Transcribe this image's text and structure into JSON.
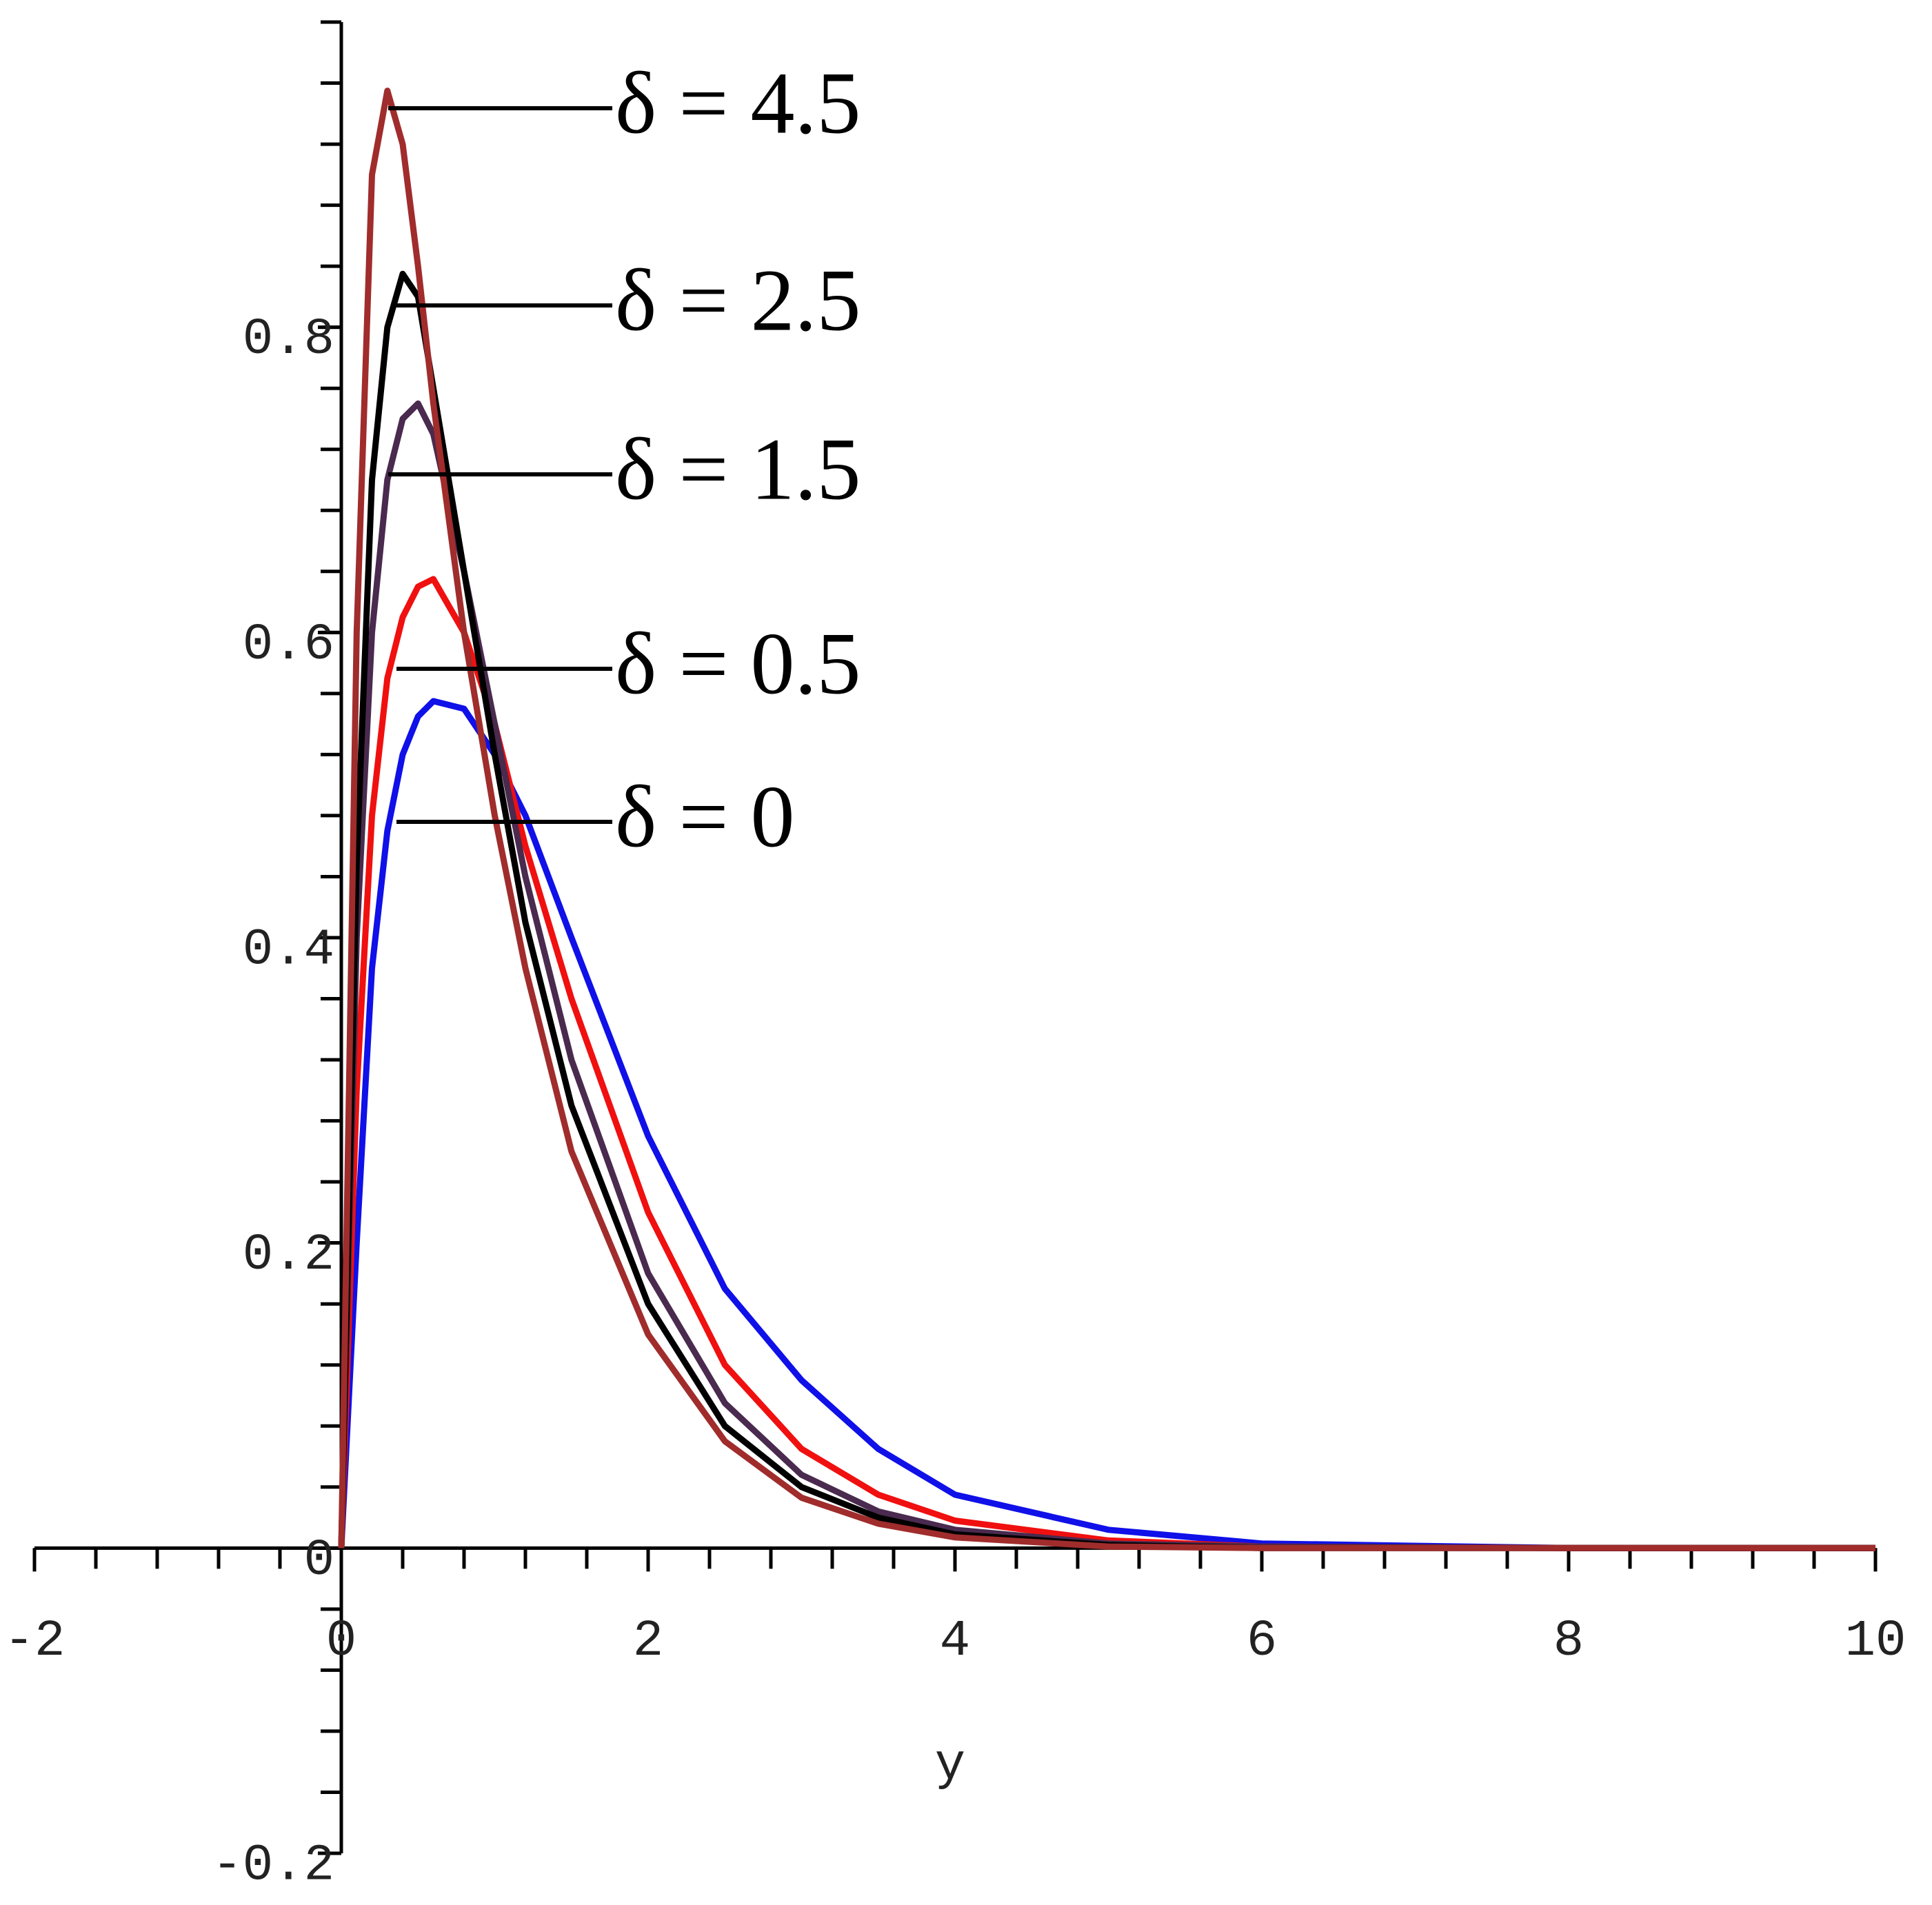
{
  "chart_data": {
    "type": "line",
    "x_label": "y",
    "x": [
      0,
      0.1,
      0.2,
      0.3,
      0.4,
      0.5,
      0.6,
      0.8,
      1,
      1.2,
      1.5,
      2,
      2.5,
      3,
      3.5,
      4,
      5,
      6,
      8,
      10
    ],
    "series": [
      {
        "name": "δ = 0",
        "color": "#1010e8",
        "values": [
          0,
          0.2,
          0.38,
          0.47,
          0.52,
          0.545,
          0.555,
          0.55,
          0.52,
          0.48,
          0.4,
          0.27,
          0.17,
          0.11,
          0.065,
          0.035,
          0.012,
          0.003,
          0,
          0
        ]
      },
      {
        "name": "δ = 0.5",
        "color": "#f01010",
        "values": [
          0,
          0.3,
          0.48,
          0.57,
          0.61,
          0.63,
          0.635,
          0.6,
          0.54,
          0.46,
          0.36,
          0.22,
          0.12,
          0.065,
          0.035,
          0.018,
          0.005,
          0.001,
          0,
          0
        ]
      },
      {
        "name": "δ = 1.5",
        "color": "#4a2a4e",
        "values": [
          0,
          0.4,
          0.6,
          0.7,
          0.74,
          0.75,
          0.73,
          0.64,
          0.54,
          0.44,
          0.32,
          0.18,
          0.095,
          0.048,
          0.024,
          0.012,
          0.003,
          0.001,
          0,
          0
        ]
      },
      {
        "name": "δ = 2.5",
        "color": "#000000",
        "values": [
          0,
          0.45,
          0.7,
          0.8,
          0.835,
          0.82,
          0.76,
          0.64,
          0.52,
          0.41,
          0.29,
          0.16,
          0.08,
          0.04,
          0.02,
          0.009,
          0.002,
          0,
          0,
          0
        ]
      },
      {
        "name": "δ = 4.5",
        "color": "#a02c2c",
        "values": [
          0,
          0.6,
          0.9,
          0.955,
          0.92,
          0.84,
          0.75,
          0.6,
          0.48,
          0.38,
          0.26,
          0.14,
          0.07,
          0.033,
          0.016,
          0.007,
          0.001,
          0,
          0,
          0
        ]
      }
    ],
    "xlim": [
      -2,
      10
    ],
    "ylim": [
      -0.2,
      1.0
    ],
    "xticks": [
      -2,
      0,
      2,
      4,
      6,
      8,
      10
    ],
    "yticks": [
      -0.2,
      0,
      0.2,
      0.4,
      0.6,
      0.8
    ]
  }
}
